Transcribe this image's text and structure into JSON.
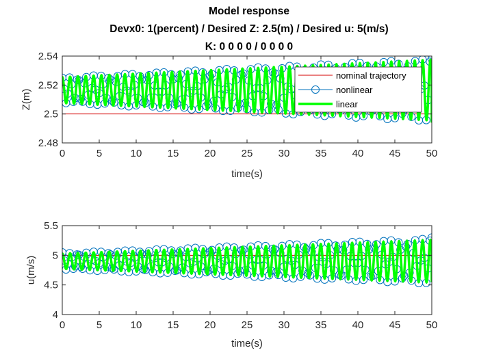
{
  "figure": {
    "title_lines": [
      "Model response",
      "Devx0: 1(percent) / Desired Z: 2.5(m) / Desired u: 5(m/s)",
      "K: 0  0  0  0 / 0  0  0  0"
    ]
  },
  "colors": {
    "nominal": "#d40000",
    "nonlinear": "#0072bd",
    "linear": "#00ff00",
    "axis": "#262626"
  },
  "chart_data": [
    {
      "type": "line",
      "xlabel": "time(s)",
      "ylabel": "Z(m)",
      "xlim": [
        0,
        50
      ],
      "ylim": [
        2.48,
        2.54
      ],
      "xticks": [
        0,
        5,
        10,
        15,
        20,
        25,
        30,
        35,
        40,
        45,
        50
      ],
      "yticks": [
        2.48,
        2.5,
        2.52,
        2.54
      ],
      "ytick_labels": [
        "2.48",
        "2.5",
        "2.52",
        "2.54"
      ],
      "grid": false,
      "legend_position": "top-right",
      "legend": [
        "nominal trajectory",
        "nonlinear",
        "linear"
      ],
      "series": [
        {
          "name": "nominal trajectory",
          "style": "thin-red-line",
          "x": [
            0,
            50
          ],
          "y": [
            2.5,
            2.5
          ]
        },
        {
          "name": "nonlinear",
          "style": "blue-line-circle-markers",
          "model": "oscillation",
          "center": 2.5165,
          "amplitude_start": 0.009,
          "amplitude_end": 0.0215,
          "period": 1.06,
          "x0": 0,
          "y0": 2.525,
          "x_end": 50,
          "y_end": 2.538
        },
        {
          "name": "linear",
          "style": "thick-green-line",
          "model": "oscillation",
          "center": 2.5165,
          "amplitude_start": 0.009,
          "amplitude_end": 0.021,
          "period": 1.06,
          "x0": 0,
          "y0": 2.523,
          "x_end": 50,
          "y_end": 2.494
        }
      ]
    },
    {
      "type": "line",
      "xlabel": "time(s)",
      "ylabel": "u(m/s)",
      "xlim": [
        0,
        50
      ],
      "ylim": [
        4,
        5.5
      ],
      "xticks": [
        0,
        5,
        10,
        15,
        20,
        25,
        30,
        35,
        40,
        45,
        50
      ],
      "yticks": [
        4,
        4.5,
        5,
        5.5
      ],
      "ytick_labels": [
        "4",
        "4.5",
        "5",
        "5.5"
      ],
      "grid": false,
      "series": [
        {
          "name": "nominal trajectory",
          "style": "thin-red-line",
          "x": [
            0,
            50
          ],
          "y": [
            5,
            5
          ]
        },
        {
          "name": "nonlinear",
          "style": "blue-line-circle-markers",
          "model": "oscillation",
          "center": 4.9,
          "amplitude_start": 0.14,
          "amplitude_end": 0.38,
          "period": 1.06,
          "x0": 0,
          "y0": 5.05,
          "x_end": 50,
          "y_end": 5.3
        },
        {
          "name": "linear",
          "style": "thick-green-line",
          "model": "oscillation",
          "center": 4.9,
          "amplitude_start": 0.13,
          "amplitude_end": 0.36,
          "period": 1.06,
          "x0": 0,
          "y0": 5.0,
          "x_end": 50,
          "y_end": 4.55
        }
      ]
    }
  ]
}
